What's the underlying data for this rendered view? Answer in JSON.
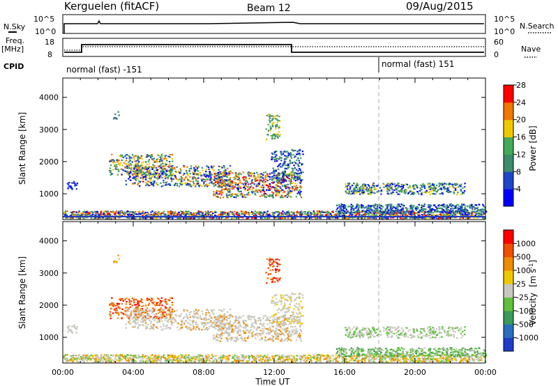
{
  "header": {
    "station": "Kerguelen (fitACF)",
    "beam": "Beam 12",
    "date": "09/Aug/2015"
  },
  "labels": {
    "nsky": "N.Sky",
    "nsearch": "N.Search",
    "freq": "Freq.",
    "mhz": "[MHz]",
    "nave": "Nave",
    "cpid": "CPID",
    "cp_left": "normal (fast) -151",
    "cp_right": "normal (fast) 151",
    "p1_ylabel": "Slant Range [km]",
    "p2_ylabel": "Slant Range [km]",
    "xlabel": "Time UT",
    "power_label": "Power [dB]",
    "velocity_label": "Velocity"
  },
  "status_axes": {
    "nsky_ticks": [
      "10^5",
      "10^0"
    ],
    "nsearch_ticks": [
      "10^5",
      "10^0"
    ],
    "freq_ticks": [
      "18",
      "8"
    ],
    "nave_ticks": [
      "60",
      "0"
    ]
  },
  "chart_data": [
    {
      "type": "heatmap",
      "title": "",
      "ylabel": "Slant Range [km]",
      "xlabel": "",
      "xlim": [
        0,
        24
      ],
      "ylim": [
        200,
        4600
      ],
      "y_ticks": [
        1000,
        2000,
        3000,
        4000
      ],
      "colorbar": {
        "label": "Power [dB]",
        "ticks": [
          "4",
          "8",
          "12",
          "16",
          "20",
          "24",
          "28"
        ],
        "colors": [
          "#0000ff",
          "#1e46c8",
          "#3c8c6e",
          "#44aa55",
          "#f0c800",
          "#f07800",
          "#ff0000"
        ]
      }
    },
    {
      "type": "heatmap",
      "title": "",
      "ylabel": "Slant Range [km]",
      "xlabel": "Time UT",
      "xlim": [
        0,
        24
      ],
      "ylim": [
        200,
        4600
      ],
      "x_ticks": [
        "00:00",
        "04:00",
        "08:00",
        "12:00",
        "16:00",
        "20:00",
        "00:00"
      ],
      "y_ticks": [
        1000,
        2000,
        3000,
        4000
      ],
      "colorbar": {
        "label": "Velocity [m s-1]",
        "ticks": [
          "1000",
          "500",
          "100",
          "25",
          "-25",
          "-100",
          "-500",
          "-1000"
        ],
        "colors": [
          "#1e3cc8",
          "#2a6ebe",
          "#3c9a5a",
          "#60c03c",
          "#c8c8c0",
          "#f0c800",
          "#f08c00",
          "#f05000",
          "#ff0000"
        ]
      }
    }
  ]
}
